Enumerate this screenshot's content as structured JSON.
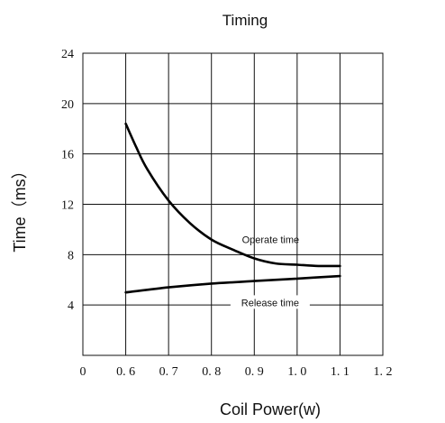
{
  "chart_data": {
    "type": "line",
    "title": "Timing",
    "xlabel": "Coil Power(w)",
    "ylabel": "Time（ms）",
    "xlim": [
      0.5,
      1.2
    ],
    "ylim": [
      0,
      24
    ],
    "x_ticks": [
      "0",
      "0. 6",
      "0. 7",
      "0. 8",
      "0. 9",
      "1. 0",
      "1. 1",
      "1. 2"
    ],
    "y_ticks": [
      "4",
      "8",
      "12",
      "16",
      "20",
      "24"
    ],
    "grid": true,
    "legend": "none",
    "series": [
      {
        "name": "Operate time",
        "x": [
          0.6,
          0.625,
          0.65,
          0.7,
          0.75,
          0.8,
          0.85,
          0.9,
          0.95,
          1.0,
          1.05,
          1.1
        ],
        "y": [
          18.4,
          16.5,
          14.8,
          12.3,
          10.5,
          9.2,
          8.4,
          7.7,
          7.3,
          7.2,
          7.1,
          7.1
        ]
      },
      {
        "name": "Release time",
        "x": [
          0.6,
          0.7,
          0.8,
          0.9,
          1.0,
          1.1
        ],
        "y": [
          5.0,
          5.4,
          5.7,
          5.9,
          6.1,
          6.3
        ]
      }
    ],
    "annotations": [
      "Operate time",
      "Release time"
    ]
  }
}
